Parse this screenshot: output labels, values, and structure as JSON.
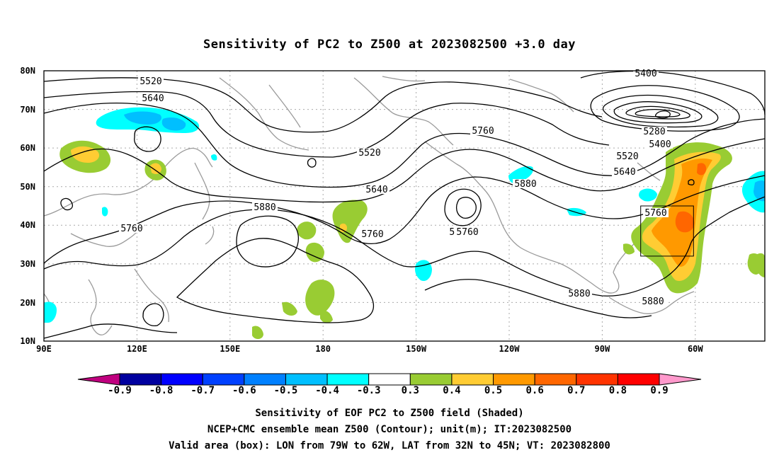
{
  "title": "Sensitivity of PC2 to Z500 at 2023082500 +3.0 day",
  "map": {
    "lon_ticks": [
      "90E",
      "120E",
      "150E",
      "180",
      "150W",
      "120W",
      "90W",
      "60W"
    ],
    "lat_ticks": [
      "80N",
      "70N",
      "60N",
      "50N",
      "40N",
      "30N",
      "20N",
      "10N"
    ],
    "contour_labels": [
      "5400",
      "5520",
      "5640",
      "5280",
      "5760",
      "5400",
      "5520",
      "5640",
      "5760",
      "5520",
      "5640",
      "5880",
      "5760",
      "5880",
      "5760",
      "5760",
      "5880",
      "5880",
      "5760"
    ],
    "valid_box": {
      "lon_from": "79W",
      "lon_to": "62W",
      "lat_from": "32N",
      "lat_to": "45N"
    }
  },
  "colorbar": {
    "labels": [
      "-0.9",
      "-0.8",
      "-0.7",
      "-0.6",
      "-0.5",
      "-0.4",
      "-0.3",
      "0.3",
      "0.4",
      "0.5",
      "0.6",
      "0.7",
      "0.8",
      "0.9"
    ],
    "colors": {
      "low_tip": "#c0007f",
      "blocks": [
        "#00009f",
        "#0000ff",
        "#0040ff",
        "#0080ff",
        "#00bfff",
        "#00ffff",
        "#ffffff",
        "#99cc33",
        "#ffcc33",
        "#ff9900",
        "#ff6600",
        "#ff3300",
        "#ff0000"
      ],
      "high_tip": "#ff99cc"
    }
  },
  "captions": [
    "Sensitivity of EOF PC2 to Z500 field (Shaded)",
    "NCEP+CMC ensemble mean Z500 (Contour); unit(m); IT:2023082500",
    "Valid area (box): LON from 79W to 62W, LAT from 32N to 45N; VT: 2023082800"
  ]
}
